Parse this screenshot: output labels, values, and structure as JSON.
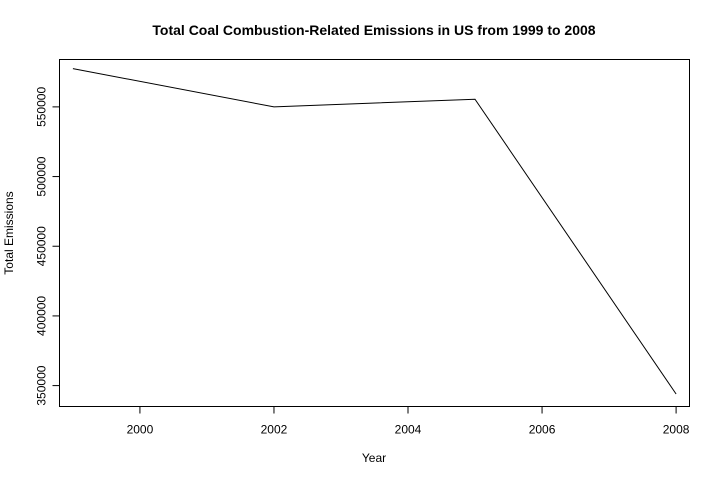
{
  "chart_data": {
    "type": "line",
    "title": "Total Coal Combustion-Related Emissions in US from 1999 to 2008",
    "xlabel": "Year",
    "ylabel": "Total Emissions",
    "xlim": [
      1998.8,
      2008.2
    ],
    "ylim": [
      335000,
      584000
    ],
    "x_ticks": [
      2000,
      2002,
      2004,
      2006,
      2008
    ],
    "x_tick_labels": [
      "2000",
      "2002",
      "2004",
      "2006",
      "2008"
    ],
    "y_ticks": [
      350000,
      400000,
      450000,
      500000,
      550000
    ],
    "y_tick_labels": [
      "350000",
      "400000",
      "450000",
      "500000",
      "550000"
    ],
    "grid": false,
    "legend": "none",
    "series": [
      {
        "x": [
          1999,
          2002,
          2005,
          2008
        ],
        "y": [
          577500,
          550000,
          555500,
          344000
        ]
      }
    ]
  }
}
